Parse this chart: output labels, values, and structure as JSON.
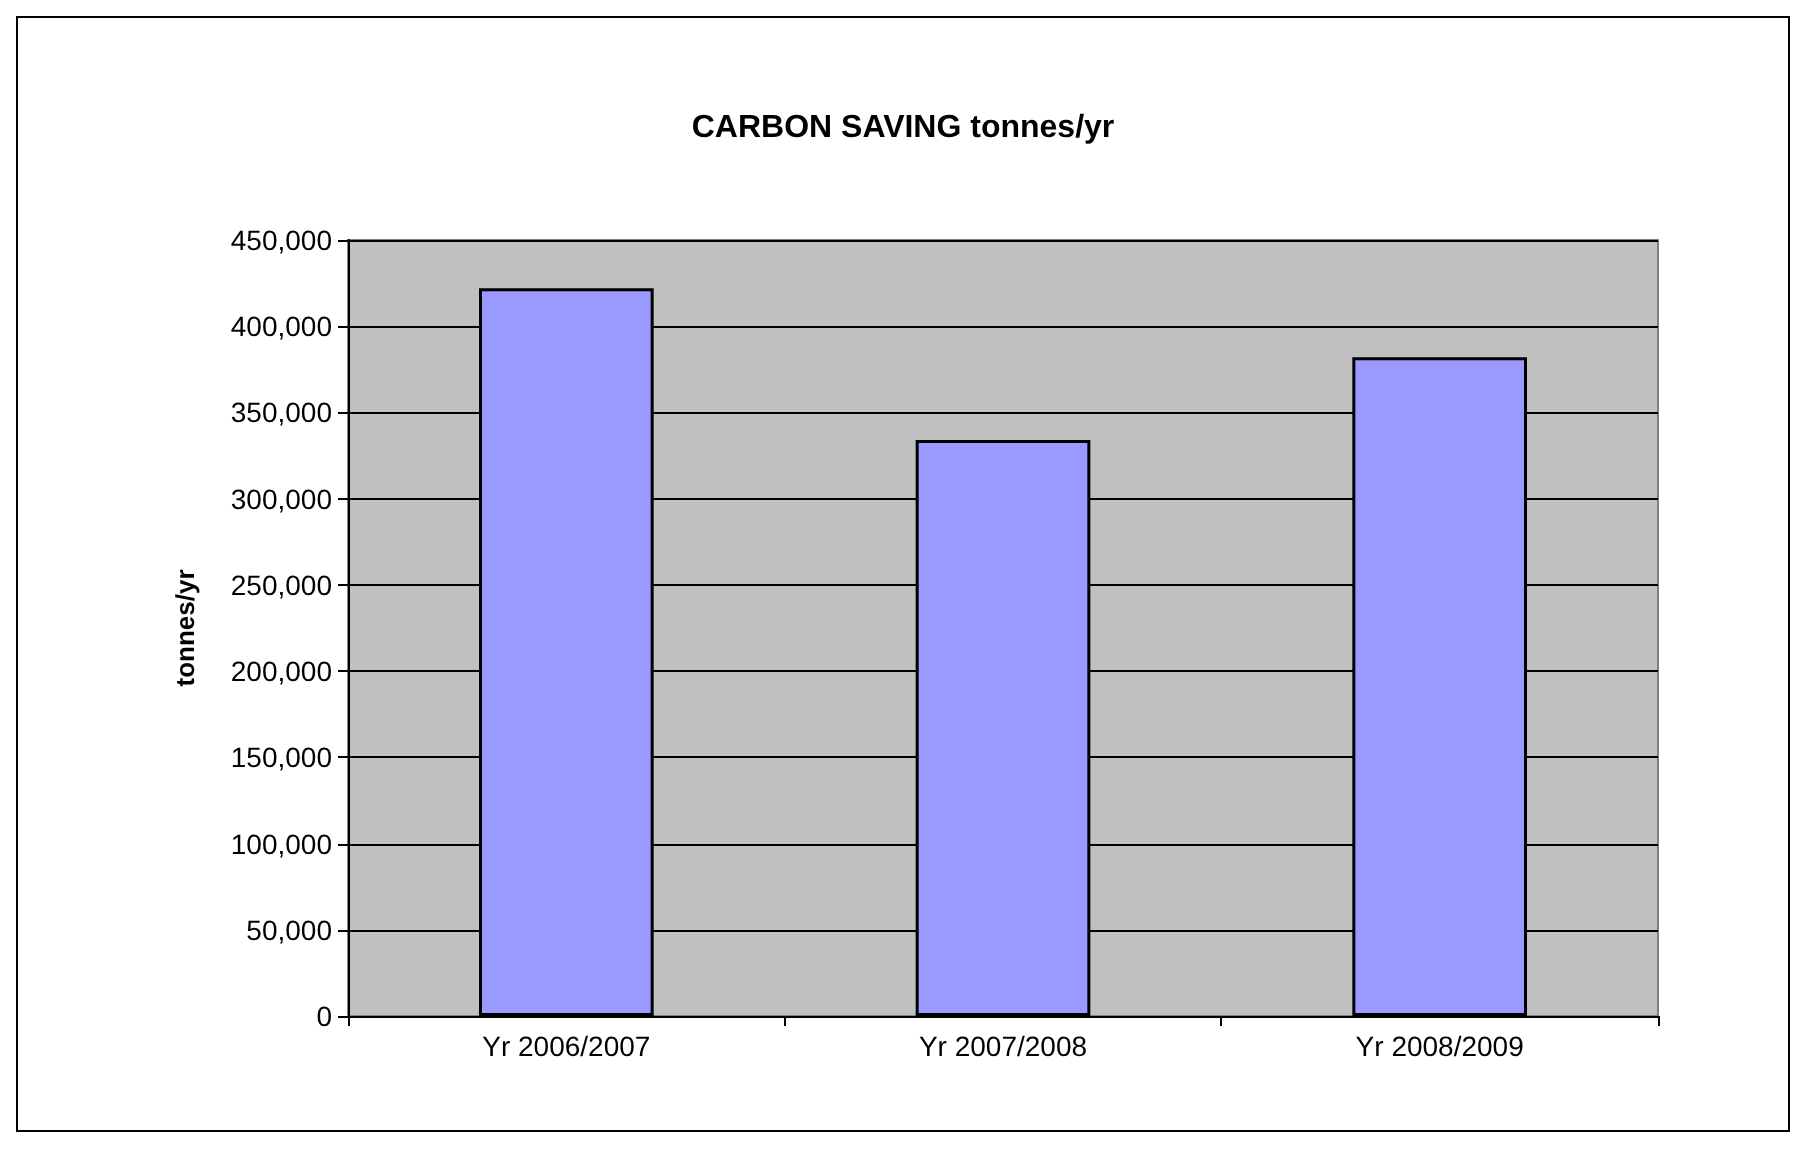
{
  "chart_data": {
    "type": "bar",
    "title": "CARBON SAVING tonnes/yr",
    "ylabel": "tonnes/yr",
    "categories": [
      "Yr 2006/2007",
      "Yr 2007/2008",
      "Yr 2008/2009"
    ],
    "values": [
      422000,
      334000,
      382000
    ],
    "color": "#9999ff",
    "ylim": [
      0,
      450000
    ],
    "yticks": [
      0,
      {
        "value": 50000,
        "label": "50,000"
      },
      {
        "value": 100000,
        "label": "100,000"
      },
      {
        "value": 150000,
        "label": "150,000"
      },
      {
        "value": 200000,
        "label": "200,000"
      },
      {
        "value": 250000,
        "label": "250,000"
      },
      {
        "value": 300000,
        "label": "300,000"
      },
      {
        "value": 350000,
        "label": "350,000"
      },
      {
        "value": 400000,
        "label": "400,000"
      },
      {
        "value": 450000,
        "label": "450,000"
      }
    ],
    "grid": "y"
  }
}
